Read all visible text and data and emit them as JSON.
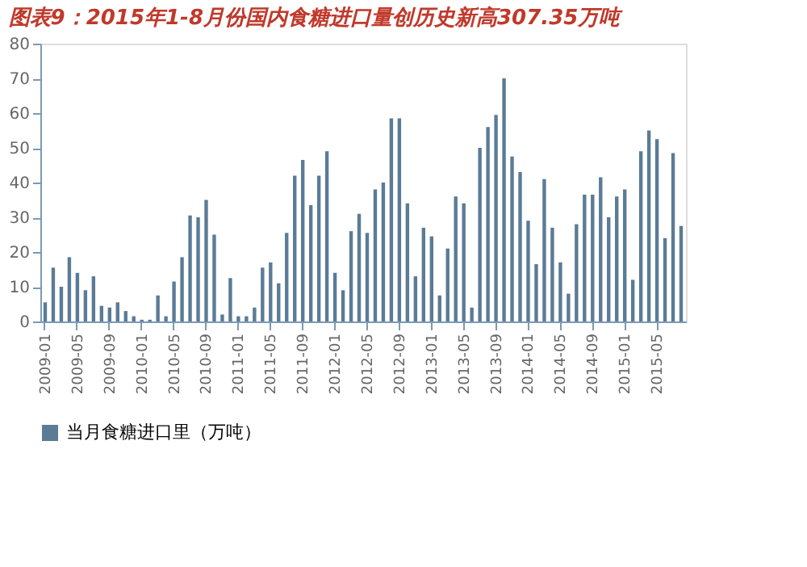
{
  "chart_data": {
    "type": "bar",
    "title": "图表9：2015年1-8月份国内食糖进口量创历史新高307.35万吨",
    "categories": [
      "2009-01",
      null,
      null,
      null,
      "2009-05",
      null,
      null,
      null,
      "2009-09",
      null,
      null,
      null,
      "2010-01",
      null,
      null,
      null,
      "2010-05",
      null,
      null,
      null,
      "2010-09",
      null,
      null,
      null,
      "2011-01",
      null,
      null,
      null,
      "2011-05",
      null,
      null,
      null,
      "2011-09",
      null,
      null,
      null,
      "2012-01",
      null,
      null,
      null,
      "2012-05",
      null,
      null,
      null,
      "2012-09",
      null,
      null,
      null,
      "2013-01",
      null,
      null,
      null,
      "2013-05",
      null,
      null,
      null,
      "2013-09",
      null,
      null,
      null,
      "2014-01",
      null,
      null,
      null,
      "2014-05",
      null,
      null,
      null,
      "2014-09",
      null,
      null,
      null,
      "2015-01",
      null,
      null,
      null,
      "2015-05",
      null,
      null,
      null
    ],
    "series": [
      {
        "name": "当月食糖进口里（万吨）",
        "color": "#5b7b96",
        "values": [
          5.5,
          15.5,
          10,
          18.5,
          14,
          9,
          13,
          4.5,
          4,
          5.5,
          3,
          1.5,
          0.5,
          0.5,
          7.5,
          1.5,
          11.5,
          18.5,
          30.5,
          30,
          35,
          25,
          2,
          12.5,
          1.5,
          1.5,
          4,
          15.5,
          17,
          11,
          25.5,
          42,
          46.5,
          33.5,
          42,
          49,
          14,
          9,
          26,
          31,
          25.5,
          38,
          40,
          58.5,
          58.5,
          34,
          13,
          27,
          24.5,
          7.5,
          21,
          36,
          34,
          4,
          50,
          56,
          59.5,
          70,
          47.5,
          43,
          29,
          16.5,
          41,
          27,
          17,
          8,
          28,
          36.5,
          36.5,
          41.5,
          30,
          36,
          38,
          12,
          49,
          55,
          52.5,
          24,
          48.5,
          27.5
        ]
      }
    ],
    "ylim": [
      0,
      80
    ],
    "yticks": [
      0,
      10,
      20,
      30,
      40,
      50,
      60,
      70,
      80
    ],
    "grid": false,
    "legend": "bottom"
  }
}
